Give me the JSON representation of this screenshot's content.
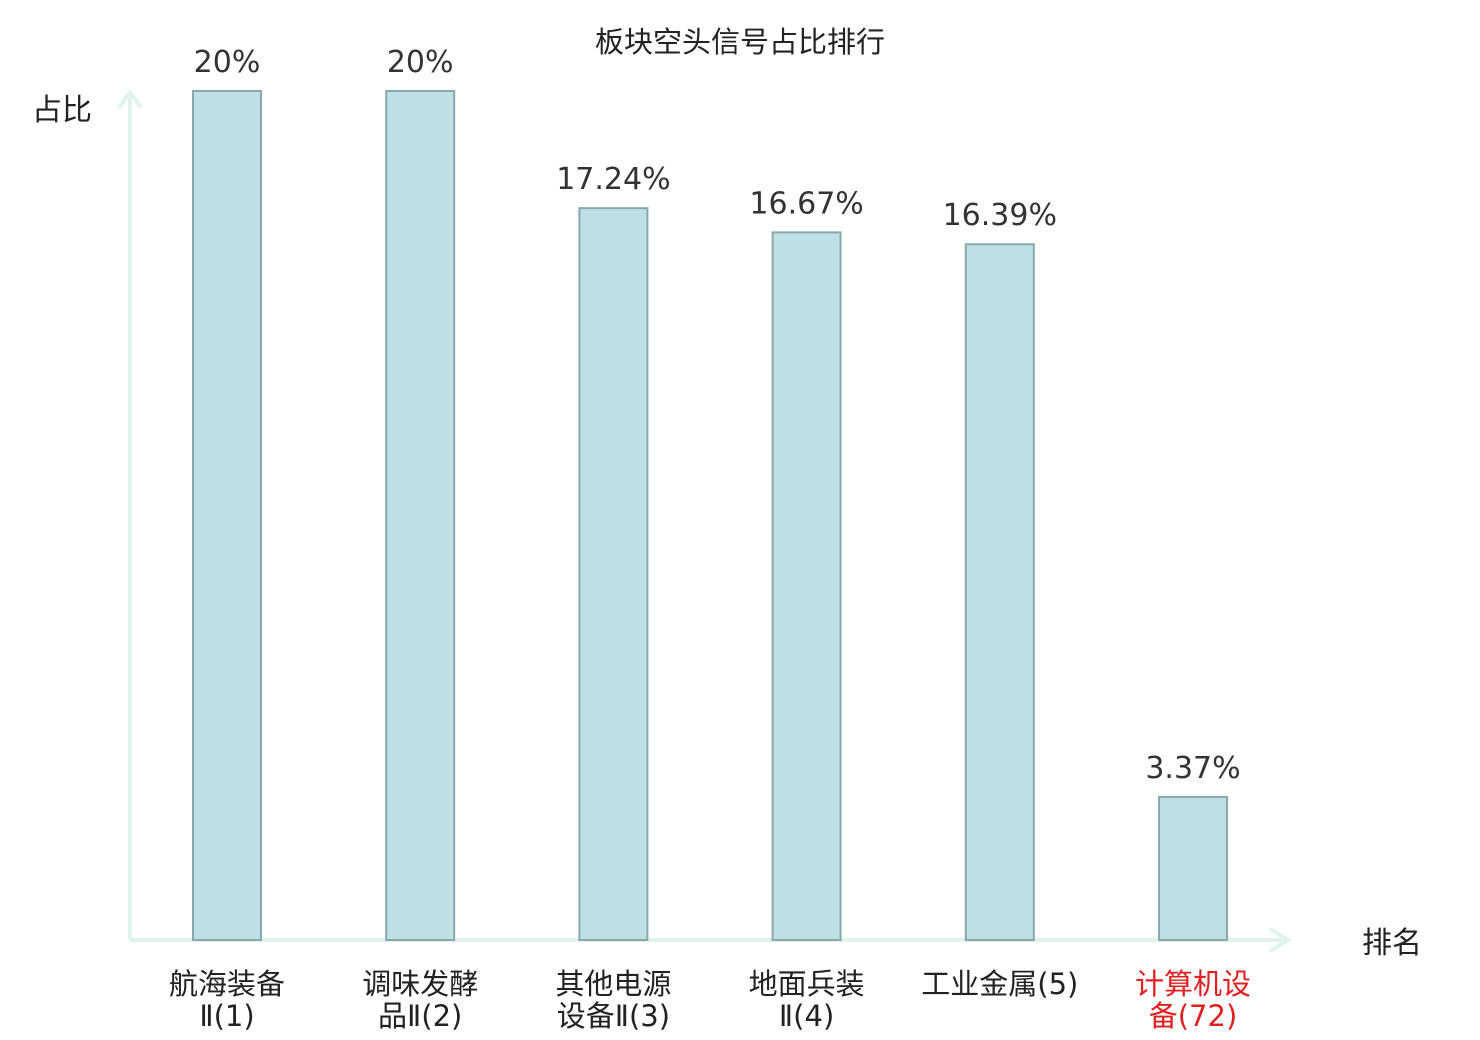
{
  "chart_data": {
    "type": "bar",
    "title": "板块空头信号占比排行",
    "ylabel": "占比",
    "xlabel": "排名",
    "ylim": [
      0,
      20
    ],
    "grid": false,
    "categories": [
      [
        "航海装备",
        "Ⅱ(1)"
      ],
      [
        "调味发酵",
        "品Ⅱ(2)"
      ],
      [
        "其他电源",
        "设备Ⅱ(3)"
      ],
      [
        "地面兵装",
        "Ⅱ(4)"
      ],
      [
        "工业金属(5)"
      ],
      [
        "计算机设",
        "备(72)"
      ]
    ],
    "highlight_index": 5,
    "values": [
      20,
      20,
      17.24,
      16.67,
      16.39,
      3.37
    ],
    "labels": [
      "20%",
      "20%",
      "17.24%",
      "16.67%",
      "16.39%",
      "3.37%"
    ]
  },
  "colors": {
    "bar_fill": "#bce0e3",
    "bar_stroke": "#8aa8ab",
    "axis": "#e0f3ef",
    "text": "#222222",
    "label_text": "#333333",
    "highlight": "#e02020"
  }
}
